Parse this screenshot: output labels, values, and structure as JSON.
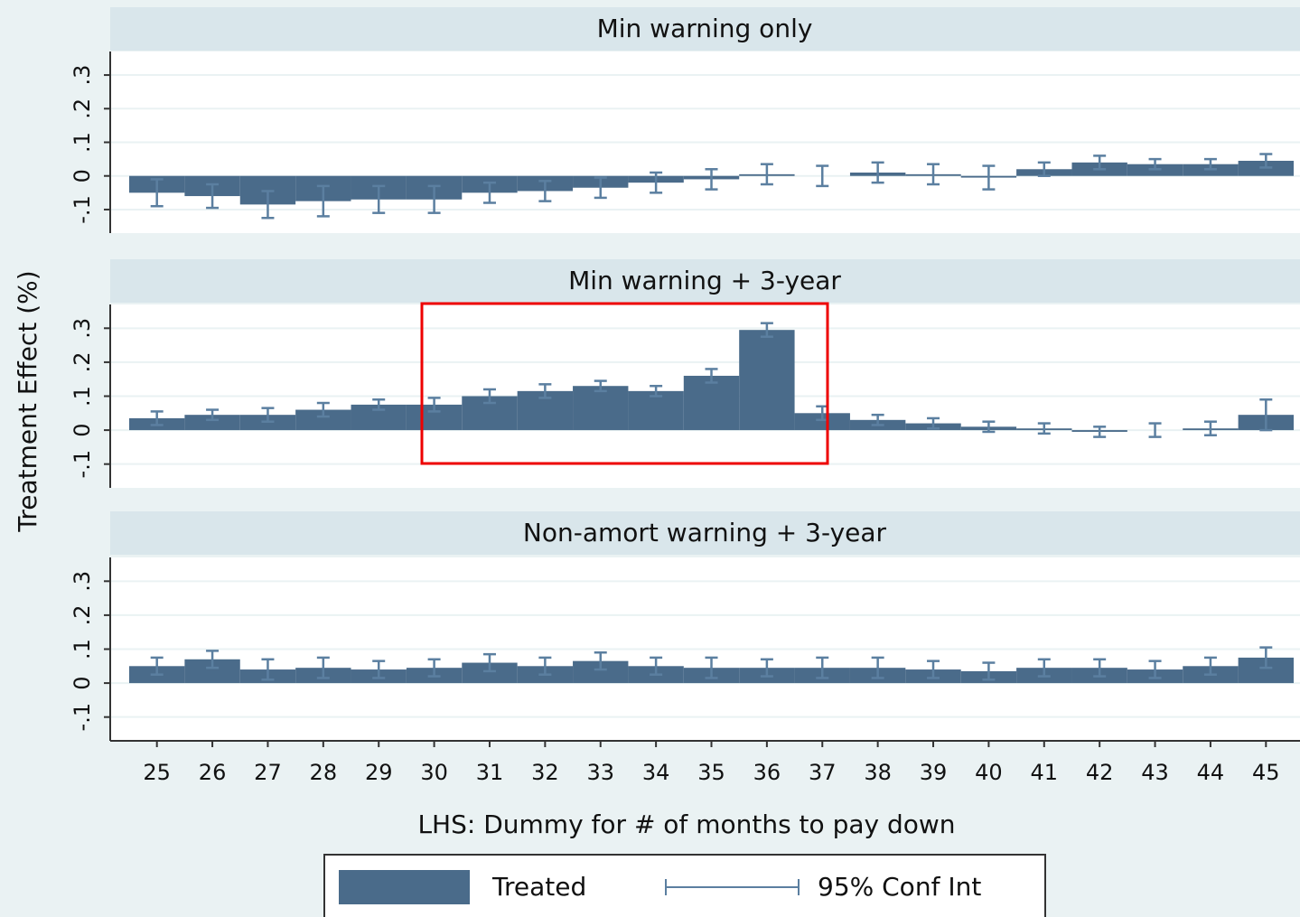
{
  "chart_data": [
    {
      "type": "bar",
      "title": "Min warning only",
      "color": "#4a6b8a",
      "error_color": "#5b7fa0",
      "categories": [
        25,
        26,
        27,
        28,
        29,
        30,
        31,
        32,
        33,
        34,
        35,
        36,
        37,
        38,
        39,
        40,
        41,
        42,
        43,
        44,
        45
      ],
      "values": [
        -0.05,
        -0.06,
        -0.085,
        -0.075,
        -0.07,
        -0.07,
        -0.05,
        -0.045,
        -0.035,
        -0.02,
        -0.01,
        0.005,
        0,
        0.01,
        0.005,
        -0.005,
        0.02,
        0.04,
        0.035,
        0.035,
        0.045
      ],
      "errors": [
        0.04,
        0.035,
        0.04,
        0.045,
        0.04,
        0.04,
        0.03,
        0.03,
        0.03,
        0.03,
        0.03,
        0.03,
        0.03,
        0.03,
        0.03,
        0.035,
        0.02,
        0.02,
        0.015,
        0.015,
        0.02
      ],
      "ylim": [
        -0.17,
        0.37
      ],
      "yticks": [
        {
          "value": -0.1,
          "label": "-.1"
        },
        0,
        {
          "value": 0.1,
          "label": ".1"
        },
        {
          "value": 0.2,
          "label": ".2"
        },
        {
          "value": 0.3,
          "label": ".3"
        }
      ],
      "grid": true
    },
    {
      "type": "bar",
      "title": "Min warning + 3-year",
      "color": "#4a6b8a",
      "error_color": "#5b7fa0",
      "categories": [
        25,
        26,
        27,
        28,
        29,
        30,
        31,
        32,
        33,
        34,
        35,
        36,
        37,
        38,
        39,
        40,
        41,
        42,
        43,
        44,
        45
      ],
      "values": [
        0.035,
        0.045,
        0.045,
        0.06,
        0.075,
        0.075,
        0.1,
        0.115,
        0.13,
        0.115,
        0.16,
        0.295,
        0.05,
        0.03,
        0.02,
        0.01,
        0.005,
        -0.005,
        0,
        0.005,
        0.045
      ],
      "errors": [
        0.02,
        0.015,
        0.02,
        0.02,
        0.015,
        0.02,
        0.02,
        0.02,
        0.015,
        0.015,
        0.02,
        0.02,
        0.02,
        0.015,
        0.015,
        0.015,
        0.015,
        0.015,
        0.02,
        0.02,
        0.045
      ],
      "ylim": [
        -0.17,
        0.37
      ],
      "yticks": [
        {
          "value": -0.1,
          "label": "-.1"
        },
        0,
        {
          "value": 0.1,
          "label": ".1"
        },
        {
          "value": 0.2,
          "label": ".2"
        },
        {
          "value": 0.3,
          "label": ".3"
        }
      ],
      "grid": true
    },
    {
      "type": "bar",
      "title": "Non-amort warning + 3-year",
      "color": "#4a6b8a",
      "error_color": "#5b7fa0",
      "categories": [
        25,
        26,
        27,
        28,
        29,
        30,
        31,
        32,
        33,
        34,
        35,
        36,
        37,
        38,
        39,
        40,
        41,
        42,
        43,
        44,
        45
      ],
      "values": [
        0.05,
        0.07,
        0.04,
        0.045,
        0.04,
        0.045,
        0.06,
        0.05,
        0.065,
        0.05,
        0.045,
        0.045,
        0.045,
        0.045,
        0.04,
        0.035,
        0.045,
        0.045,
        0.04,
        0.05,
        0.075
      ],
      "errors": [
        0.025,
        0.025,
        0.03,
        0.03,
        0.025,
        0.025,
        0.025,
        0.025,
        0.025,
        0.025,
        0.03,
        0.025,
        0.03,
        0.03,
        0.025,
        0.025,
        0.025,
        0.025,
        0.025,
        0.025,
        0.03
      ],
      "ylim": [
        -0.17,
        0.37
      ],
      "yticks": [
        {
          "value": -0.1,
          "label": "-.1"
        },
        0,
        {
          "value": 0.1,
          "label": ".1"
        },
        {
          "value": 0.2,
          "label": ".2"
        },
        {
          "value": 0.3,
          "label": ".3"
        }
      ],
      "grid": true
    }
  ],
  "x_label": "LHS: Dummy for # of months to pay down",
  "y_label": "Treatment Effect (%)",
  "legend": [
    "Treated",
    "95% Conf Int"
  ]
}
